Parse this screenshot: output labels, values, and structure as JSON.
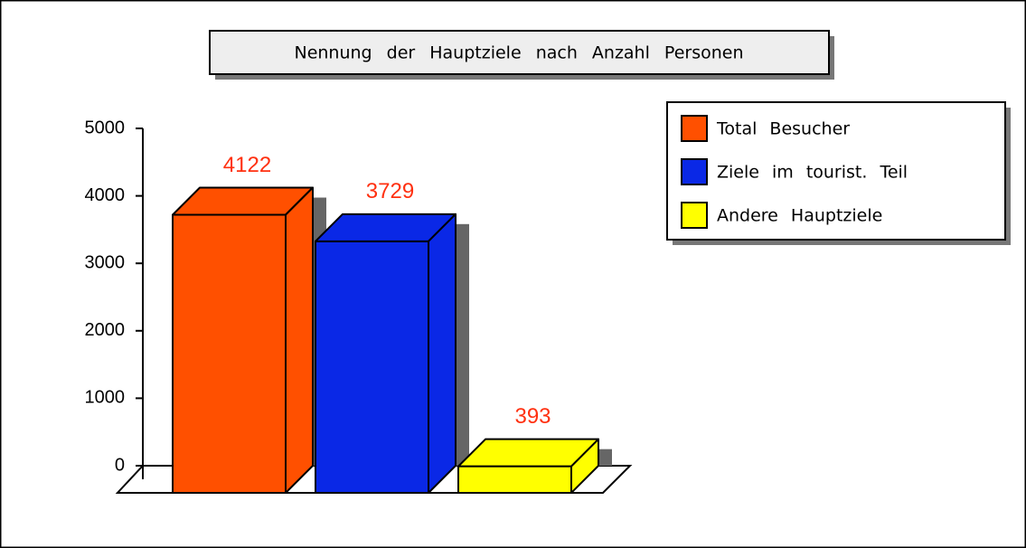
{
  "chart_data": {
    "type": "bar",
    "title": "Nennung der Hauptziele nach Anzahl Personen",
    "series": [
      {
        "name": "Total Besucher",
        "color": "#ff5000",
        "values": [
          4122
        ]
      },
      {
        "name": "Ziele im tourist. Teil",
        "color": "#0a28e6",
        "values": [
          3729
        ]
      },
      {
        "name": "Andere Hauptziele",
        "color": "#ffff00",
        "values": [
          393
        ]
      }
    ],
    "ylim": [
      0,
      5000
    ],
    "yticks": [
      0,
      1000,
      2000,
      3000,
      4000,
      5000
    ]
  }
}
